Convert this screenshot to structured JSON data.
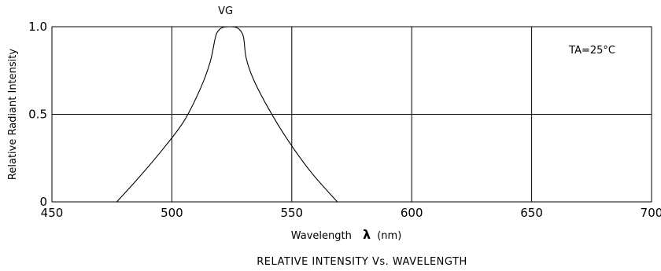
{
  "chart_data": {
    "type": "line",
    "title": "RELATIVE INTENSITY Vs. WAVELENGTH",
    "xlabel": "Wavelength",
    "xlabel_symbol": "λ",
    "xlabel_unit": "(nm)",
    "ylabel": "Relative Radiant Intensity",
    "xlim": [
      450,
      700
    ],
    "ylim": [
      0,
      1.0
    ],
    "x_ticks": [
      450,
      500,
      550,
      600,
      650,
      700
    ],
    "x_tick_labels": [
      "450",
      "500",
      "550",
      "600",
      "650",
      "700"
    ],
    "y_ticks": [
      0,
      0.5,
      1.0
    ],
    "y_tick_labels": [
      "0",
      "0.5",
      "1.0"
    ],
    "grid": true,
    "annotation": "TA=25°C",
    "series": [
      {
        "name": "VG",
        "x": [
          477,
          485,
          495,
          505,
          512,
          516,
          518,
          519,
          521,
          524,
          527,
          529,
          530,
          531,
          534,
          540,
          548,
          558,
          569
        ],
        "y": [
          0.0,
          0.12,
          0.28,
          0.46,
          0.65,
          0.8,
          0.93,
          0.97,
          0.995,
          1.0,
          0.995,
          0.97,
          0.93,
          0.82,
          0.7,
          0.54,
          0.36,
          0.17,
          0.0
        ]
      }
    ]
  }
}
